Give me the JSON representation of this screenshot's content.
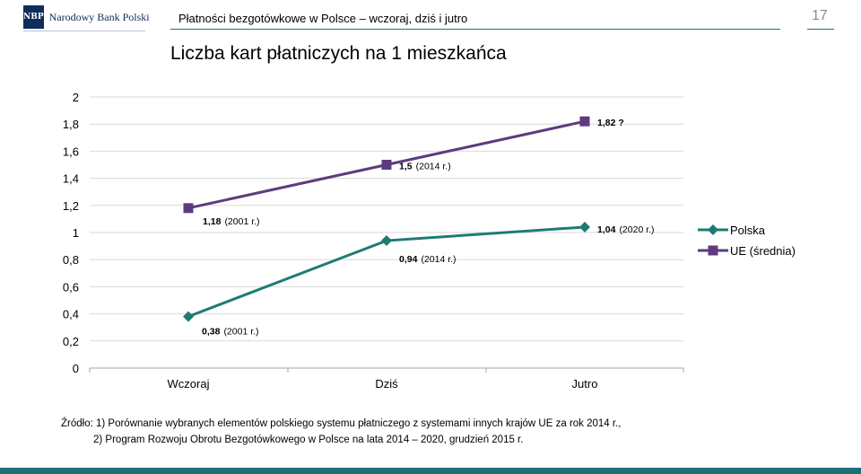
{
  "header": {
    "logo_mark": "NBP",
    "logo_name": "Narodowy Bank Polski",
    "subtitle": "Płatności bezgotówkowe w Polsce – wczoraj, dziś i jutro",
    "page_number": "17"
  },
  "slide_title": "Liczba kart płatniczych na 1 mieszkańca",
  "chart_data": {
    "type": "line",
    "categories": [
      "Wczoraj",
      "Dziś",
      "Jutro"
    ],
    "ylim": [
      0,
      2
    ],
    "yticks": [
      "0",
      "0,2",
      "0,4",
      "0,6",
      "0,8",
      "1",
      "1,2",
      "1,4",
      "1,6",
      "1,8",
      "2"
    ],
    "grid": true,
    "legend_position": "right",
    "series": [
      {
        "name": "Polska",
        "color": "#1e7b73",
        "marker": "diamond",
        "values": [
          0.38,
          0.94,
          1.04
        ],
        "labels": [
          {
            "value": "0,38",
            "note": "(2001 r.)"
          },
          {
            "value": "0,94",
            "note": "(2014 r.)"
          },
          {
            "value": "1,04",
            "note": "(2020 r.)"
          }
        ]
      },
      {
        "name": "UE (średnia)",
        "color": "#5e3b7e",
        "marker": "square",
        "values": [
          1.18,
          1.5,
          1.82
        ],
        "labels": [
          {
            "value": "1,18",
            "note": "(2001 r.)"
          },
          {
            "value": "1,5",
            "note": "(2014 r.)"
          },
          {
            "value": "1,82 ?",
            "note": ""
          }
        ]
      }
    ]
  },
  "footnote": {
    "line1": "Źródło: 1) Porównanie wybranych elementów polskiego systemu płatniczego z systemami innych krajów UE za rok 2014 r.,",
    "line2": "2) Program Rozwoju Obrotu Bezgotówkowego w Polsce na lata 2014 – 2020, grudzień 2015 r."
  }
}
